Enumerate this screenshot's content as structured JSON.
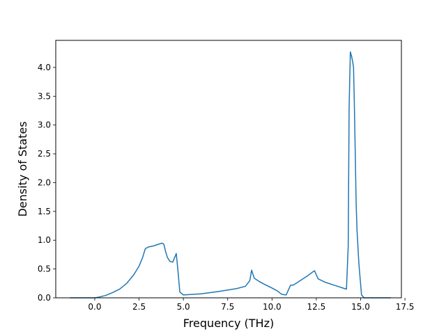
{
  "chart_data": {
    "type": "line",
    "title": "",
    "xlabel": "Frequency (THz)",
    "ylabel": "Density of States",
    "xlim": [
      -2.2,
      17.3
    ],
    "ylim": [
      0.0,
      4.47
    ],
    "xticks": [
      0.0,
      2.5,
      5.0,
      7.5,
      10.0,
      12.5,
      15.0,
      17.5
    ],
    "xtick_labels": [
      "0.0",
      "2.5",
      "5.0",
      "7.5",
      "10.0",
      "12.5",
      "15.0",
      "17.5"
    ],
    "yticks": [
      0.0,
      0.5,
      1.0,
      1.5,
      2.0,
      2.5,
      3.0,
      3.5,
      4.0
    ],
    "ytick_labels": [
      "0.0",
      "0.5",
      "1.0",
      "1.5",
      "2.0",
      "2.5",
      "3.0",
      "3.5",
      "4.0"
    ],
    "grid": false,
    "line_color": "#1f77b4",
    "series": [
      {
        "x": [
          -1.4,
          0.0,
          0.2,
          0.6,
          1.0,
          1.4,
          1.8,
          2.2,
          2.5,
          2.7,
          2.85,
          3.0,
          3.3,
          3.6,
          3.8,
          3.9,
          4.0,
          4.1,
          4.25,
          4.4,
          4.55,
          4.6,
          4.7,
          4.8,
          5.0,
          6.0,
          7.0,
          8.0,
          8.5,
          8.75,
          8.85,
          9.0,
          9.3,
          9.6,
          10.0,
          10.3,
          10.55,
          10.8,
          10.9,
          11.05,
          11.2,
          11.6,
          12.0,
          12.3,
          12.4,
          12.6,
          13.0,
          13.5,
          14.1,
          14.2,
          14.3,
          14.35,
          14.42,
          14.5,
          14.55,
          14.6,
          14.65,
          14.75,
          14.8,
          14.9,
          15.05,
          15.2,
          16.7
        ],
        "y": [
          0.0,
          0.0,
          0.01,
          0.04,
          0.09,
          0.15,
          0.25,
          0.4,
          0.55,
          0.7,
          0.85,
          0.88,
          0.9,
          0.93,
          0.95,
          0.93,
          0.8,
          0.7,
          0.63,
          0.62,
          0.73,
          0.77,
          0.45,
          0.1,
          0.05,
          0.07,
          0.11,
          0.16,
          0.2,
          0.3,
          0.48,
          0.34,
          0.28,
          0.23,
          0.17,
          0.12,
          0.06,
          0.05,
          0.12,
          0.22,
          0.22,
          0.3,
          0.38,
          0.45,
          0.47,
          0.33,
          0.27,
          0.22,
          0.16,
          0.15,
          0.9,
          3.3,
          4.27,
          4.18,
          4.1,
          4.0,
          3.3,
          1.6,
          1.15,
          0.6,
          0.05,
          0.0,
          0.0
        ]
      }
    ]
  }
}
